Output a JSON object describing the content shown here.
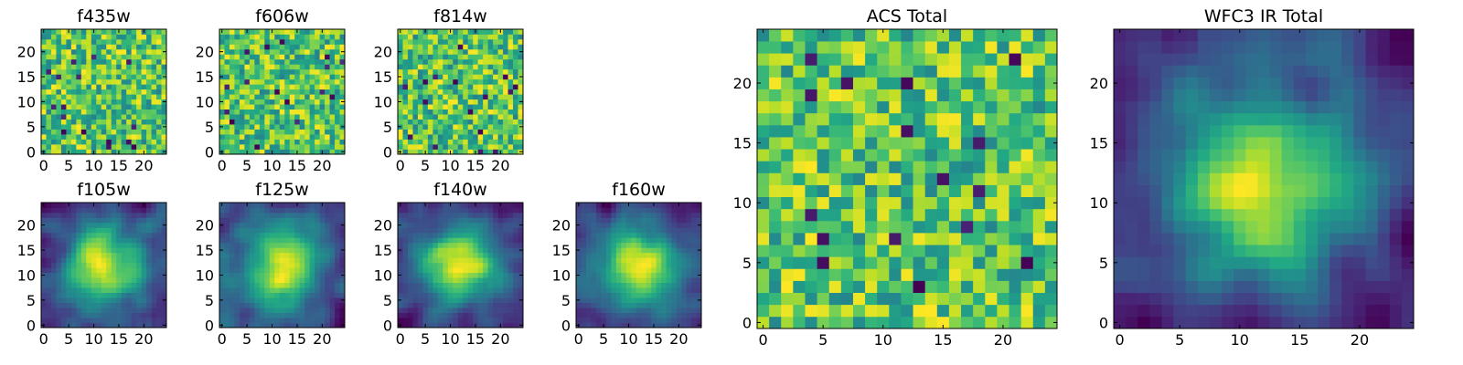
{
  "chart_data": [
    {
      "id": "f435w",
      "type": "heatmap",
      "title": "f435w",
      "size": 25,
      "colormap": "viridis",
      "style": "noise",
      "x": {
        "ticks": [
          0,
          5,
          10,
          15,
          20
        ],
        "labels": [
          "0",
          "5",
          "10",
          "15",
          "20"
        ]
      },
      "y": {
        "ticks": [
          0,
          5,
          10,
          15,
          20
        ],
        "labels": [
          "0",
          "5",
          "10",
          "15",
          "20"
        ]
      }
    },
    {
      "id": "f606w",
      "type": "heatmap",
      "title": "f606w",
      "size": 25,
      "colormap": "viridis",
      "style": "noise",
      "x": {
        "ticks": [
          0,
          5,
          10,
          15,
          20
        ],
        "labels": [
          "0",
          "5",
          "10",
          "15",
          "20"
        ]
      },
      "y": {
        "ticks": [
          0,
          5,
          10,
          15,
          20
        ],
        "labels": [
          "0",
          "5",
          "10",
          "15",
          "20"
        ]
      }
    },
    {
      "id": "f814w",
      "type": "heatmap",
      "title": "f814w",
      "size": 25,
      "colormap": "viridis",
      "style": "noise",
      "x": {
        "ticks": [
          0,
          5,
          10,
          15,
          20
        ],
        "labels": [
          "0",
          "5",
          "10",
          "15",
          "20"
        ]
      },
      "y": {
        "ticks": [
          0,
          5,
          10,
          15,
          20
        ],
        "labels": [
          "0",
          "5",
          "10",
          "15",
          "20"
        ]
      }
    },
    {
      "id": "f105w",
      "type": "heatmap",
      "title": "f105w",
      "size": 25,
      "colormap": "viridis",
      "style": "smooth",
      "x": {
        "ticks": [
          0,
          5,
          10,
          15,
          20
        ],
        "labels": [
          "0",
          "5",
          "10",
          "15",
          "20"
        ]
      },
      "y": {
        "ticks": [
          0,
          5,
          10,
          15,
          20
        ],
        "labels": [
          "0",
          "5",
          "10",
          "15",
          "20"
        ]
      }
    },
    {
      "id": "f125w",
      "type": "heatmap",
      "title": "f125w",
      "size": 25,
      "colormap": "viridis",
      "style": "smooth",
      "x": {
        "ticks": [
          0,
          5,
          10,
          15,
          20
        ],
        "labels": [
          "0",
          "5",
          "10",
          "15",
          "20"
        ]
      },
      "y": {
        "ticks": [
          0,
          5,
          10,
          15,
          20
        ],
        "labels": [
          "0",
          "5",
          "10",
          "15",
          "20"
        ]
      }
    },
    {
      "id": "f140w",
      "type": "heatmap",
      "title": "f140w",
      "size": 25,
      "colormap": "viridis",
      "style": "smooth",
      "x": {
        "ticks": [
          0,
          5,
          10,
          15,
          20
        ],
        "labels": [
          "0",
          "5",
          "10",
          "15",
          "20"
        ]
      },
      "y": {
        "ticks": [
          0,
          5,
          10,
          15,
          20
        ],
        "labels": [
          "0",
          "5",
          "10",
          "15",
          "20"
        ]
      }
    },
    {
      "id": "f160w",
      "type": "heatmap",
      "title": "f160w",
      "size": 25,
      "colormap": "viridis",
      "style": "smooth",
      "x": {
        "ticks": [
          0,
          5,
          10,
          15,
          20
        ],
        "labels": [
          "0",
          "5",
          "10",
          "15",
          "20"
        ]
      },
      "y": {
        "ticks": [
          0,
          5,
          10,
          15,
          20
        ],
        "labels": [
          "0",
          "5",
          "10",
          "15",
          "20"
        ]
      }
    },
    {
      "id": "acs-total",
      "type": "heatmap",
      "title": "ACS Total",
      "size": 25,
      "colormap": "viridis",
      "style": "noise",
      "x": {
        "ticks": [
          0,
          5,
          10,
          15,
          20
        ],
        "labels": [
          "0",
          "5",
          "10",
          "15",
          "20"
        ]
      },
      "y": {
        "ticks": [
          0,
          5,
          10,
          15,
          20
        ],
        "labels": [
          "0",
          "5",
          "10",
          "15",
          "20"
        ]
      }
    },
    {
      "id": "wfc3-ir-total",
      "type": "heatmap",
      "title": "WFC3 IR Total",
      "size": 25,
      "colormap": "viridis",
      "style": "smooth",
      "x": {
        "ticks": [
          0,
          5,
          10,
          15,
          20
        ],
        "labels": [
          "0",
          "5",
          "10",
          "15",
          "20"
        ]
      },
      "y": {
        "ticks": [
          0,
          5,
          10,
          15,
          20
        ],
        "labels": [
          "0",
          "5",
          "10",
          "15",
          "20"
        ]
      }
    }
  ]
}
